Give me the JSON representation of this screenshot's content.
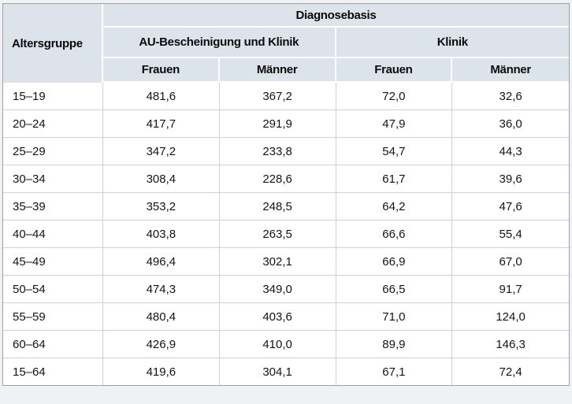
{
  "table": {
    "header": {
      "age_column": "Altersgruppe",
      "diagnosis_basis": "Diagnosebasis",
      "group_au_klinik": "AU-Bescheinigung und Klinik",
      "group_klinik": "Klinik",
      "women": "Frauen",
      "men": "Männer"
    },
    "rows": [
      {
        "age": "15–19",
        "au_women": "481,6",
        "au_men": "367,2",
        "klinik_women": "72,0",
        "klinik_men": "32,6"
      },
      {
        "age": "20–24",
        "au_women": "417,7",
        "au_men": "291,9",
        "klinik_women": "47,9",
        "klinik_men": "36,0"
      },
      {
        "age": "25–29",
        "au_women": "347,2",
        "au_men": "233,8",
        "klinik_women": "54,7",
        "klinik_men": "44,3"
      },
      {
        "age": "30–34",
        "au_women": "308,4",
        "au_men": "228,6",
        "klinik_women": "61,7",
        "klinik_men": "39,6"
      },
      {
        "age": "35–39",
        "au_women": "353,2",
        "au_men": "248,5",
        "klinik_women": "64,2",
        "klinik_men": "47,6"
      },
      {
        "age": "40–44",
        "au_women": "403,8",
        "au_men": "263,5",
        "klinik_women": "66,6",
        "klinik_men": "55,4"
      },
      {
        "age": "45–49",
        "au_women": "496,4",
        "au_men": "302,1",
        "klinik_women": "66,9",
        "klinik_men": "67,0"
      },
      {
        "age": "50–54",
        "au_women": "474,3",
        "au_men": "349,0",
        "klinik_women": "66,5",
        "klinik_men": "91,7"
      },
      {
        "age": "55–59",
        "au_women": "480,4",
        "au_men": "403,6",
        "klinik_women": "71,0",
        "klinik_men": "124,0"
      },
      {
        "age": "60–64",
        "au_women": "426,9",
        "au_men": "410,0",
        "klinik_women": "89,9",
        "klinik_men": "146,3"
      },
      {
        "age": "15–64",
        "au_women": "419,6",
        "au_men": "304,1",
        "klinik_women": "67,1",
        "klinik_men": "72,4"
      }
    ]
  },
  "chart_data": {
    "type": "table",
    "title": "Diagnosebasis",
    "xlabel": "Altersgruppe",
    "categories": [
      "15–19",
      "20–24",
      "25–29",
      "30–34",
      "35–39",
      "40–44",
      "45–49",
      "50–54",
      "55–59",
      "60–64",
      "15–64"
    ],
    "series": [
      {
        "name": "AU-Bescheinigung und Klinik – Frauen",
        "values": [
          481.6,
          417.7,
          347.2,
          308.4,
          353.2,
          403.8,
          496.4,
          474.3,
          480.4,
          426.9,
          419.6
        ]
      },
      {
        "name": "AU-Bescheinigung und Klinik – Männer",
        "values": [
          367.2,
          291.9,
          233.8,
          228.6,
          248.5,
          263.5,
          302.1,
          349.0,
          403.6,
          410.0,
          304.1
        ]
      },
      {
        "name": "Klinik – Frauen",
        "values": [
          72.0,
          47.9,
          54.7,
          61.7,
          64.2,
          66.6,
          66.9,
          66.5,
          71.0,
          89.9,
          67.1
        ]
      },
      {
        "name": "Klinik – Männer",
        "values": [
          32.6,
          36.0,
          44.3,
          39.6,
          47.6,
          55.4,
          67.0,
          91.7,
          124.0,
          146.3,
          72.4
        ]
      }
    ],
    "layout": {
      "decimal_separator": ",",
      "grid": true,
      "header_levels": 3
    }
  },
  "colors": {
    "header_bg": "#dde3ea",
    "grid_line": "#cdd1d5",
    "frame_border": "#9aa1a7",
    "page_bg": "#eff1f2",
    "text": "#141414"
  }
}
